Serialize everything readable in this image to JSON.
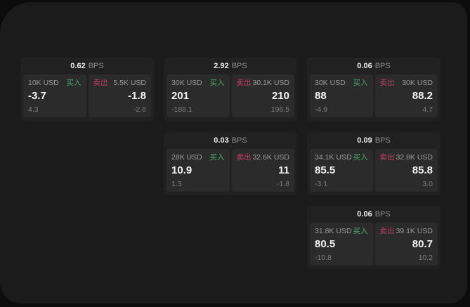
{
  "labels": {
    "buy": "买入",
    "sell": "卖出",
    "bps_unit": "BPS"
  },
  "colors": {
    "buy": "#44a96c",
    "sell": "#c24064",
    "window_bg": "#1b1b1b",
    "card_bg": "#212121",
    "panel_bg": "#2b2b2b"
  },
  "cards": [
    {
      "col": 1,
      "row": 1,
      "bps": "0.62",
      "buy": {
        "size": "10K USD",
        "value": "-3.7",
        "delta": "4.3"
      },
      "sell": {
        "size": "5.5K USD",
        "value": "-1.8",
        "delta": "-2.6"
      }
    },
    {
      "col": 2,
      "row": 1,
      "bps": "2.92",
      "buy": {
        "size": "30K USD",
        "value": "201",
        "delta": "-188.1"
      },
      "sell": {
        "size": "30.1K USD",
        "value": "210",
        "delta": "196.5"
      }
    },
    {
      "col": 3,
      "row": 1,
      "bps": "0.06",
      "buy": {
        "size": "30K USD",
        "value": "88",
        "delta": "-4.9"
      },
      "sell": {
        "size": "30K USD",
        "value": "88.2",
        "delta": "4.7"
      }
    },
    {
      "col": 2,
      "row": 2,
      "bps": "0.03",
      "buy": {
        "size": "28K USD",
        "value": "10.9",
        "delta": "1.3"
      },
      "sell": {
        "size": "32.6K USD",
        "value": "11",
        "delta": "-1.8"
      }
    },
    {
      "col": 3,
      "row": 2,
      "bps": "0.09",
      "buy": {
        "size": "34.1K USD",
        "value": "85.5",
        "delta": "-3.1"
      },
      "sell": {
        "size": "32.8K USD",
        "value": "85.8",
        "delta": "3.0"
      }
    },
    {
      "col": 3,
      "row": 3,
      "bps": "0.06",
      "buy": {
        "size": "31.8K USD",
        "value": "80.5",
        "delta": "-10.8"
      },
      "sell": {
        "size": "39.1K USD",
        "value": "80.7",
        "delta": "10.2"
      }
    }
  ]
}
